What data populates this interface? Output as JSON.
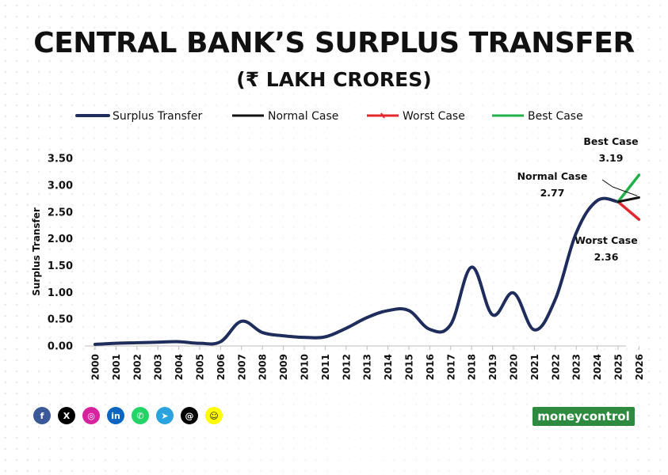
{
  "title": "CENTRAL BANK’S SURPLUS TRANSFER",
  "subtitle": "(₹ LAKH CRORES)",
  "colors": {
    "surplus": "#1f2d5c",
    "normal": "#111111",
    "worst": "#e0282e",
    "best": "#22b04b"
  },
  "chart_data": {
    "type": "line",
    "title": "CENTRAL BANK’S SURPLUS TRANSFER",
    "subtitle": "(₹ LAKH CRORES)",
    "xlabel": "",
    "ylabel": "Surplus Transfer",
    "ylim": [
      0,
      3.5
    ],
    "yticks": [
      "0.00",
      "0.50",
      "1.00",
      "1.50",
      "2.00",
      "2.50",
      "3.00",
      "3.50"
    ],
    "categories": [
      "2000",
      "2001",
      "2002",
      "2003",
      "2004",
      "2005",
      "2006",
      "2007",
      "2008",
      "2009",
      "2010",
      "2011",
      "2012",
      "2013",
      "2014",
      "2015",
      "2016",
      "2017",
      "2018",
      "2019",
      "2020",
      "2021",
      "2022",
      "2023",
      "2024",
      "2025",
      "2026"
    ],
    "legend_position": "top",
    "grid": false,
    "series": [
      {
        "name": "Surplus Transfer",
        "x": [
          "2000",
          "2001",
          "2002",
          "2003",
          "2004",
          "2005",
          "2006",
          "2007",
          "2008",
          "2009",
          "2010",
          "2011",
          "2012",
          "2013",
          "2014",
          "2015",
          "2016",
          "2017",
          "2018",
          "2019",
          "2020",
          "2021",
          "2022",
          "2023",
          "2024",
          "2025"
        ],
        "values": [
          0.03,
          0.05,
          0.06,
          0.07,
          0.08,
          0.05,
          0.08,
          0.46,
          0.25,
          0.19,
          0.16,
          0.17,
          0.33,
          0.53,
          0.66,
          0.66,
          0.31,
          0.4,
          1.47,
          0.58,
          0.99,
          0.3,
          0.87,
          2.11,
          2.71,
          2.69
        ]
      },
      {
        "name": "Normal Case",
        "x": [
          "2025",
          "2026"
        ],
        "values": [
          2.69,
          2.77
        ]
      },
      {
        "name": "Worst Case",
        "x": [
          "2025",
          "2026"
        ],
        "values": [
          2.69,
          2.36
        ]
      },
      {
        "name": "Best Case",
        "x": [
          "2025",
          "2026"
        ],
        "values": [
          2.69,
          3.19
        ]
      }
    ],
    "annotations": [
      {
        "label": "Best Case",
        "value": "3.19"
      },
      {
        "label": "Normal Case",
        "value": "2.77"
      },
      {
        "label": "Worst Case",
        "value": "2.36"
      }
    ]
  },
  "social": [
    {
      "name": "facebook-icon",
      "glyph": "f",
      "color": "#3b5998"
    },
    {
      "name": "x-icon",
      "glyph": "X",
      "color": "#000000"
    },
    {
      "name": "instagram-icon",
      "glyph": "◎",
      "color": "#d6249f"
    },
    {
      "name": "linkedin-icon",
      "glyph": "in",
      "color": "#0a66c2"
    },
    {
      "name": "whatsapp-icon",
      "glyph": "✆",
      "color": "#25d366"
    },
    {
      "name": "telegram-icon",
      "glyph": "➤",
      "color": "#2aa3df"
    },
    {
      "name": "threads-icon",
      "glyph": "@",
      "color": "#000000"
    },
    {
      "name": "snapchat-icon",
      "glyph": "☺",
      "color": "#fffc00"
    }
  ],
  "logo": {
    "text": "moneycontrol"
  }
}
